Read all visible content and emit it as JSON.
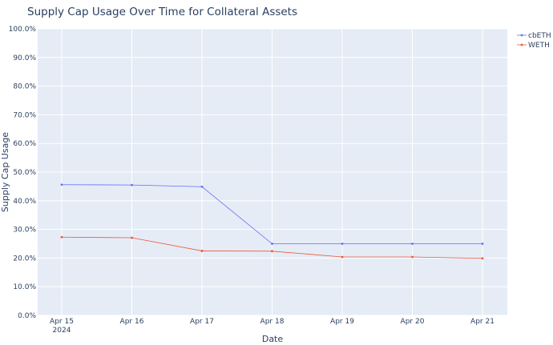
{
  "chart_data": {
    "type": "line",
    "title": "Supply Cap Usage Over Time for Collateral Assets",
    "xlabel": "Date",
    "ylabel": "Supply Cap Usage",
    "x": [
      "2024-04-15",
      "2024-04-16",
      "2024-04-17",
      "2024-04-18",
      "2024-04-19",
      "2024-04-20",
      "2024-04-21"
    ],
    "x_tick_labels": [
      "Apr 15",
      "Apr 16",
      "Apr 17",
      "Apr 18",
      "Apr 19",
      "Apr 20",
      "Apr 21"
    ],
    "x_tick_year": "2024",
    "y_tick_labels": [
      "0.0%",
      "10.0%",
      "20.0%",
      "30.0%",
      "40.0%",
      "50.0%",
      "60.0%",
      "70.0%",
      "80.0%",
      "90.0%",
      "100.0%"
    ],
    "ylim": [
      0,
      1
    ],
    "grid": true,
    "legend_position": "top-right",
    "background_color": "#e5ecf6",
    "series": [
      {
        "name": "cbETH",
        "color": "#636efa",
        "values": [
          0.456,
          0.455,
          0.449,
          0.25,
          0.25,
          0.25,
          0.25
        ]
      },
      {
        "name": "WETH",
        "color": "#ef553b",
        "values": [
          0.273,
          0.271,
          0.225,
          0.224,
          0.204,
          0.204,
          0.199
        ]
      }
    ]
  }
}
